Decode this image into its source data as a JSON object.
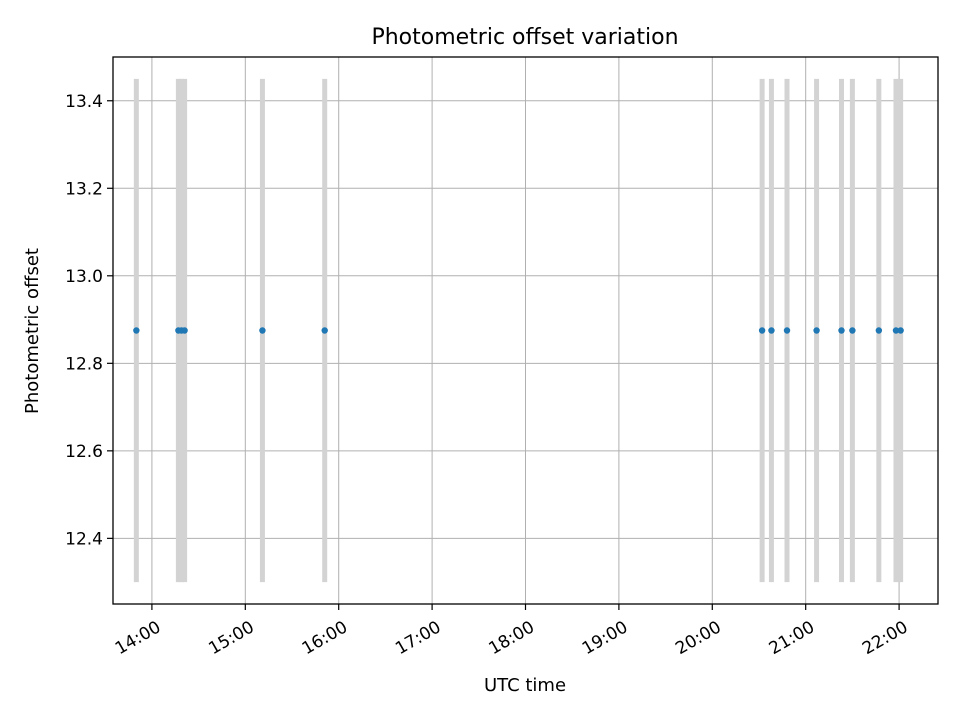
{
  "chart_data": {
    "type": "scatter",
    "title": "Photometric offset variation",
    "xlabel": "UTC time",
    "ylabel": "Photometric offset",
    "x_ticks": [
      "14:00",
      "15:00",
      "16:00",
      "17:00",
      "18:00",
      "19:00",
      "20:00",
      "21:00",
      "22:00"
    ],
    "y_ticks": [
      "12.4",
      "12.6",
      "12.8",
      "13.0",
      "13.2",
      "13.4"
    ],
    "xlim": [
      "13:35",
      "22:25"
    ],
    "ylim": [
      12.25,
      13.5
    ],
    "grid": true,
    "colors": {
      "points": "#1f77b4",
      "error_bars": "#d3d3d3",
      "grid": "#b0b0b0",
      "axes": "#000000"
    },
    "series": [
      {
        "points": [
          {
            "x": "13:50",
            "y": 12.875,
            "ylow": 12.3,
            "yhigh": 13.45
          },
          {
            "x": "14:17",
            "y": 12.875,
            "ylow": 12.3,
            "yhigh": 13.45
          },
          {
            "x": "14:19",
            "y": 12.875,
            "ylow": 12.3,
            "yhigh": 13.45
          },
          {
            "x": "14:21",
            "y": 12.875,
            "ylow": 12.3,
            "yhigh": 13.45
          },
          {
            "x": "15:11",
            "y": 12.875,
            "ylow": 12.3,
            "yhigh": 13.45
          },
          {
            "x": "15:51",
            "y": 12.875,
            "ylow": 12.3,
            "yhigh": 13.45
          },
          {
            "x": "20:32",
            "y": 12.875,
            "ylow": 12.3,
            "yhigh": 13.45
          },
          {
            "x": "20:38",
            "y": 12.875,
            "ylow": 12.3,
            "yhigh": 13.45
          },
          {
            "x": "20:48",
            "y": 12.875,
            "ylow": 12.3,
            "yhigh": 13.45
          },
          {
            "x": "21:07",
            "y": 12.875,
            "ylow": 12.3,
            "yhigh": 13.45
          },
          {
            "x": "21:23",
            "y": 12.875,
            "ylow": 12.3,
            "yhigh": 13.45
          },
          {
            "x": "21:30",
            "y": 12.875,
            "ylow": 12.3,
            "yhigh": 13.45
          },
          {
            "x": "21:47",
            "y": 12.875,
            "ylow": 12.3,
            "yhigh": 13.45
          },
          {
            "x": "21:58",
            "y": 12.875,
            "ylow": 12.3,
            "yhigh": 13.45
          },
          {
            "x": "22:01",
            "y": 12.875,
            "ylow": 12.3,
            "yhigh": 13.45
          }
        ]
      }
    ]
  }
}
